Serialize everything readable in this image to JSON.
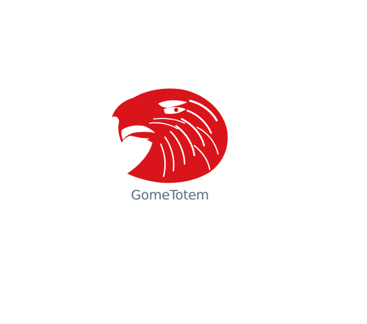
{
  "brand": {
    "name": "GomeTotem",
    "logo_icon": "eagle-head-icon",
    "primary_color": "#d9141a",
    "text_color": "#5c6b82"
  }
}
